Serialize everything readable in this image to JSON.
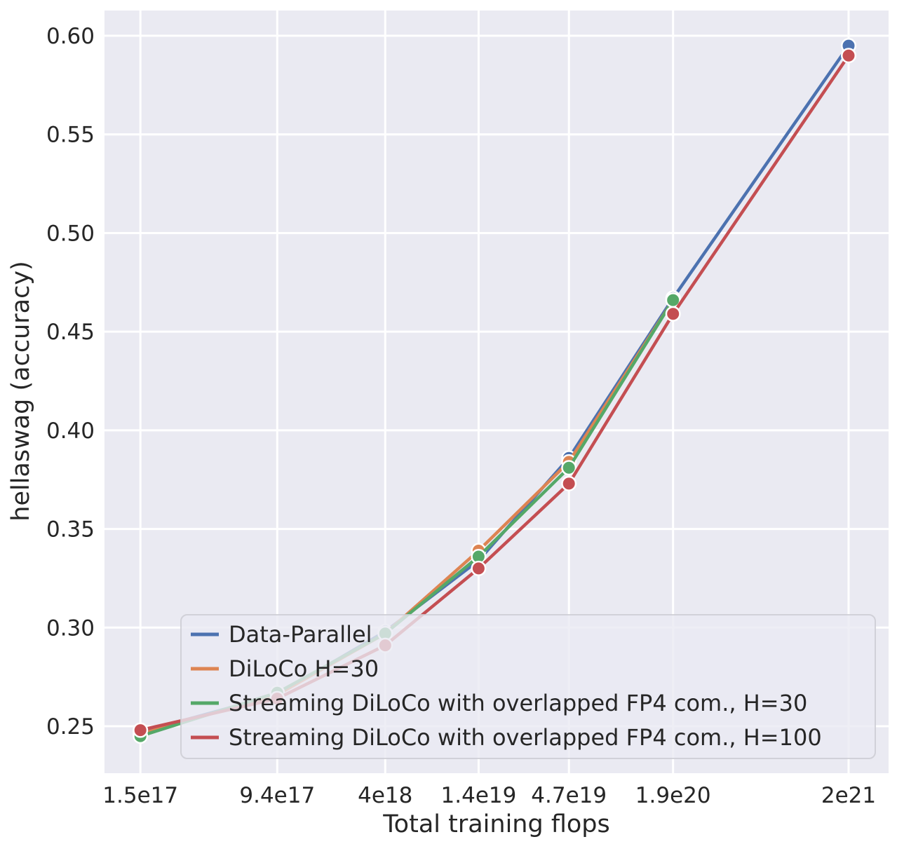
{
  "style": {
    "figure_background": "#ffffff",
    "plot_background": "#eaeaf2",
    "grid_color": "#ffffff",
    "text_color": "#262626",
    "legend_face": "rgba(234,234,242,0.8)",
    "legend_edge": "rgba(204,204,212,0.85)"
  },
  "chart_data": {
    "type": "line",
    "xlabel": "Total training flops",
    "ylabel": "hellaswag (accuracy)",
    "x_scale": "log",
    "grid": true,
    "legend_position": "lower-left-wide",
    "x_tick_labels": [
      "1.5e17",
      "9.4e17",
      "4e18",
      "1.4e19",
      "4.7e19",
      "1.9e20",
      "2e21"
    ],
    "x_tick_values": [
      1.5e+17,
      9.4e+17,
      4e+18,
      1.4e+19,
      4.7e+19,
      1.9e+20,
      2e+21
    ],
    "y_ticks": [
      0.25,
      0.3,
      0.35,
      0.4,
      0.45,
      0.5,
      0.55,
      0.6
    ],
    "xlim_log10": [
      16.967,
      21.534
    ],
    "ylim": [
      0.2262,
      0.6128
    ],
    "series": [
      {
        "name": "Data-Parallel",
        "color": "#4c72b0",
        "x": [
          1.5e+17,
          9.4e+17,
          4e+18,
          1.4e+19,
          4.7e+19,
          1.9e+20,
          2e+21
        ],
        "y": [
          0.247,
          0.266,
          0.298,
          0.334,
          0.386,
          0.467,
          0.595
        ]
      },
      {
        "name": "DiLoCo H=30",
        "color": "#dd8452",
        "x": [
          1.5e+17,
          9.4e+17,
          4e+18,
          1.4e+19,
          4.7e+19,
          1.9e+20
        ],
        "y": [
          0.246,
          0.266,
          0.297,
          0.339,
          0.384,
          0.466
        ]
      },
      {
        "name": "Streaming DiLoCo with overlapped FP4 com., H=30",
        "color": "#55a868",
        "x": [
          1.5e+17,
          9.4e+17,
          4e+18,
          1.4e+19,
          4.7e+19,
          1.9e+20
        ],
        "y": [
          0.245,
          0.267,
          0.297,
          0.336,
          0.381,
          0.466
        ]
      },
      {
        "name": "Streaming DiLoCo with overlapped FP4 com., H=100",
        "color": "#c44e52",
        "x": [
          1.5e+17,
          9.4e+17,
          4e+18,
          1.4e+19,
          4.7e+19,
          1.9e+20,
          2e+21
        ],
        "y": [
          0.248,
          0.264,
          0.291,
          0.33,
          0.373,
          0.459,
          0.59
        ]
      }
    ]
  }
}
